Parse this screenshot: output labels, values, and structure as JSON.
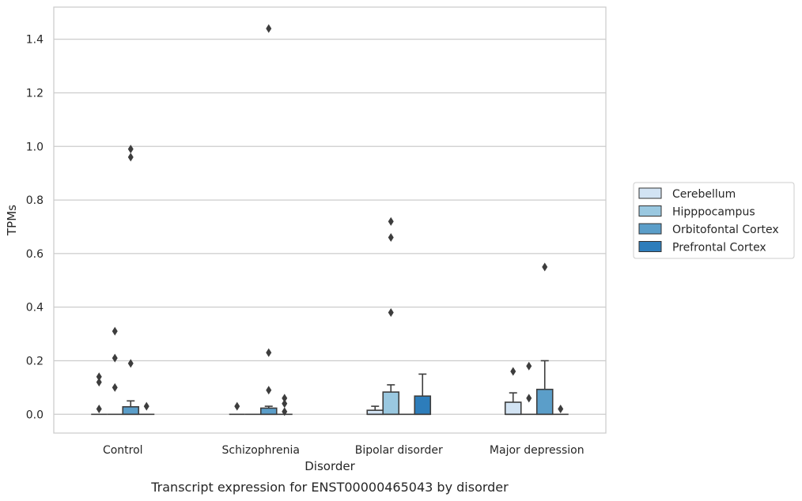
{
  "chart_data": {
    "type": "box",
    "caption": "Transcript expression for ENST00000465043 by disorder",
    "xlabel": "Disorder",
    "ylabel": "TPMs",
    "ylim": [
      -0.07,
      1.52
    ],
    "yticks": [
      0.0,
      0.2,
      0.4,
      0.6,
      0.8,
      1.0,
      1.2,
      1.4
    ],
    "ytick_labels": [
      "0.0",
      "0.2",
      "0.4",
      "0.6",
      "0.8",
      "1.0",
      "1.2",
      "1.4"
    ],
    "grid": "horizontal",
    "legend_position": "right",
    "categories": [
      "Control",
      "Schizophrenia",
      "Bipolar disorder",
      "Major depression"
    ],
    "series": [
      {
        "name": "Cerebellum",
        "color": "#d2e3f3",
        "boxes": [
          {
            "q1": 0.0,
            "median": 0.0,
            "q3": 0.0,
            "whislo": 0.0,
            "whishi": 0.0,
            "fliers": [
              0.02,
              0.12,
              0.14
            ]
          },
          {
            "q1": 0.0,
            "median": 0.0,
            "q3": 0.0,
            "whislo": 0.0,
            "whishi": 0.0,
            "fliers": [
              0.03
            ]
          },
          {
            "q1": 0.0,
            "median": 0.0,
            "q3": 0.015,
            "whislo": 0.0,
            "whishi": 0.03,
            "fliers": []
          },
          {
            "q1": 0.0,
            "median": 0.0,
            "q3": 0.045,
            "whislo": 0.0,
            "whishi": 0.08,
            "fliers": [
              0.16
            ]
          }
        ]
      },
      {
        "name": "Hipppocampus",
        "color": "#9ac8e0",
        "boxes": [
          {
            "q1": 0.0,
            "median": 0.0,
            "q3": 0.0,
            "whislo": 0.0,
            "whishi": 0.0,
            "fliers": [
              0.1,
              0.21,
              0.31
            ]
          },
          {
            "q1": 0.0,
            "median": 0.0,
            "q3": 0.0,
            "whislo": 0.0,
            "whishi": 0.0,
            "fliers": []
          },
          {
            "q1": 0.0,
            "median": 0.0,
            "q3": 0.083,
            "whislo": 0.0,
            "whishi": 0.11,
            "fliers": [
              0.38,
              0.66,
              0.72
            ]
          },
          {
            "q1": 0.0,
            "median": 0.0,
            "q3": 0.0,
            "whislo": 0.0,
            "whishi": 0.0,
            "fliers": [
              0.06,
              0.18
            ]
          }
        ]
      },
      {
        "name": "Orbitofontal Cortex",
        "color": "#5b9ec9",
        "boxes": [
          {
            "q1": 0.0,
            "median": 0.0,
            "q3": 0.028,
            "whislo": 0.0,
            "whishi": 0.05,
            "fliers": [
              0.19,
              0.96,
              0.99
            ]
          },
          {
            "q1": 0.0,
            "median": 0.0,
            "q3": 0.023,
            "whislo": 0.0,
            "whishi": 0.03,
            "fliers": [
              0.09,
              0.23,
              1.44
            ]
          },
          {
            "q1": 0.0,
            "median": 0.0,
            "q3": 0.0,
            "whislo": 0.0,
            "whishi": 0.0,
            "fliers": []
          },
          {
            "q1": 0.0,
            "median": 0.0,
            "q3": 0.093,
            "whislo": 0.0,
            "whishi": 0.2,
            "fliers": [
              0.55
            ]
          }
        ]
      },
      {
        "name": "Prefrontal Cortex",
        "color": "#2d7dbb",
        "boxes": [
          {
            "q1": 0.0,
            "median": 0.0,
            "q3": 0.0,
            "whislo": 0.0,
            "whishi": 0.0,
            "fliers": [
              0.03
            ]
          },
          {
            "q1": 0.0,
            "median": 0.0,
            "q3": 0.0,
            "whislo": 0.0,
            "whishi": 0.0,
            "fliers": [
              0.01,
              0.04,
              0.06
            ]
          },
          {
            "q1": 0.0,
            "median": 0.0,
            "q3": 0.068,
            "whislo": 0.0,
            "whishi": 0.15,
            "fliers": []
          },
          {
            "q1": 0.0,
            "median": 0.0,
            "q3": 0.0,
            "whislo": 0.0,
            "whishi": 0.0,
            "fliers": [
              0.02
            ]
          }
        ]
      }
    ]
  }
}
